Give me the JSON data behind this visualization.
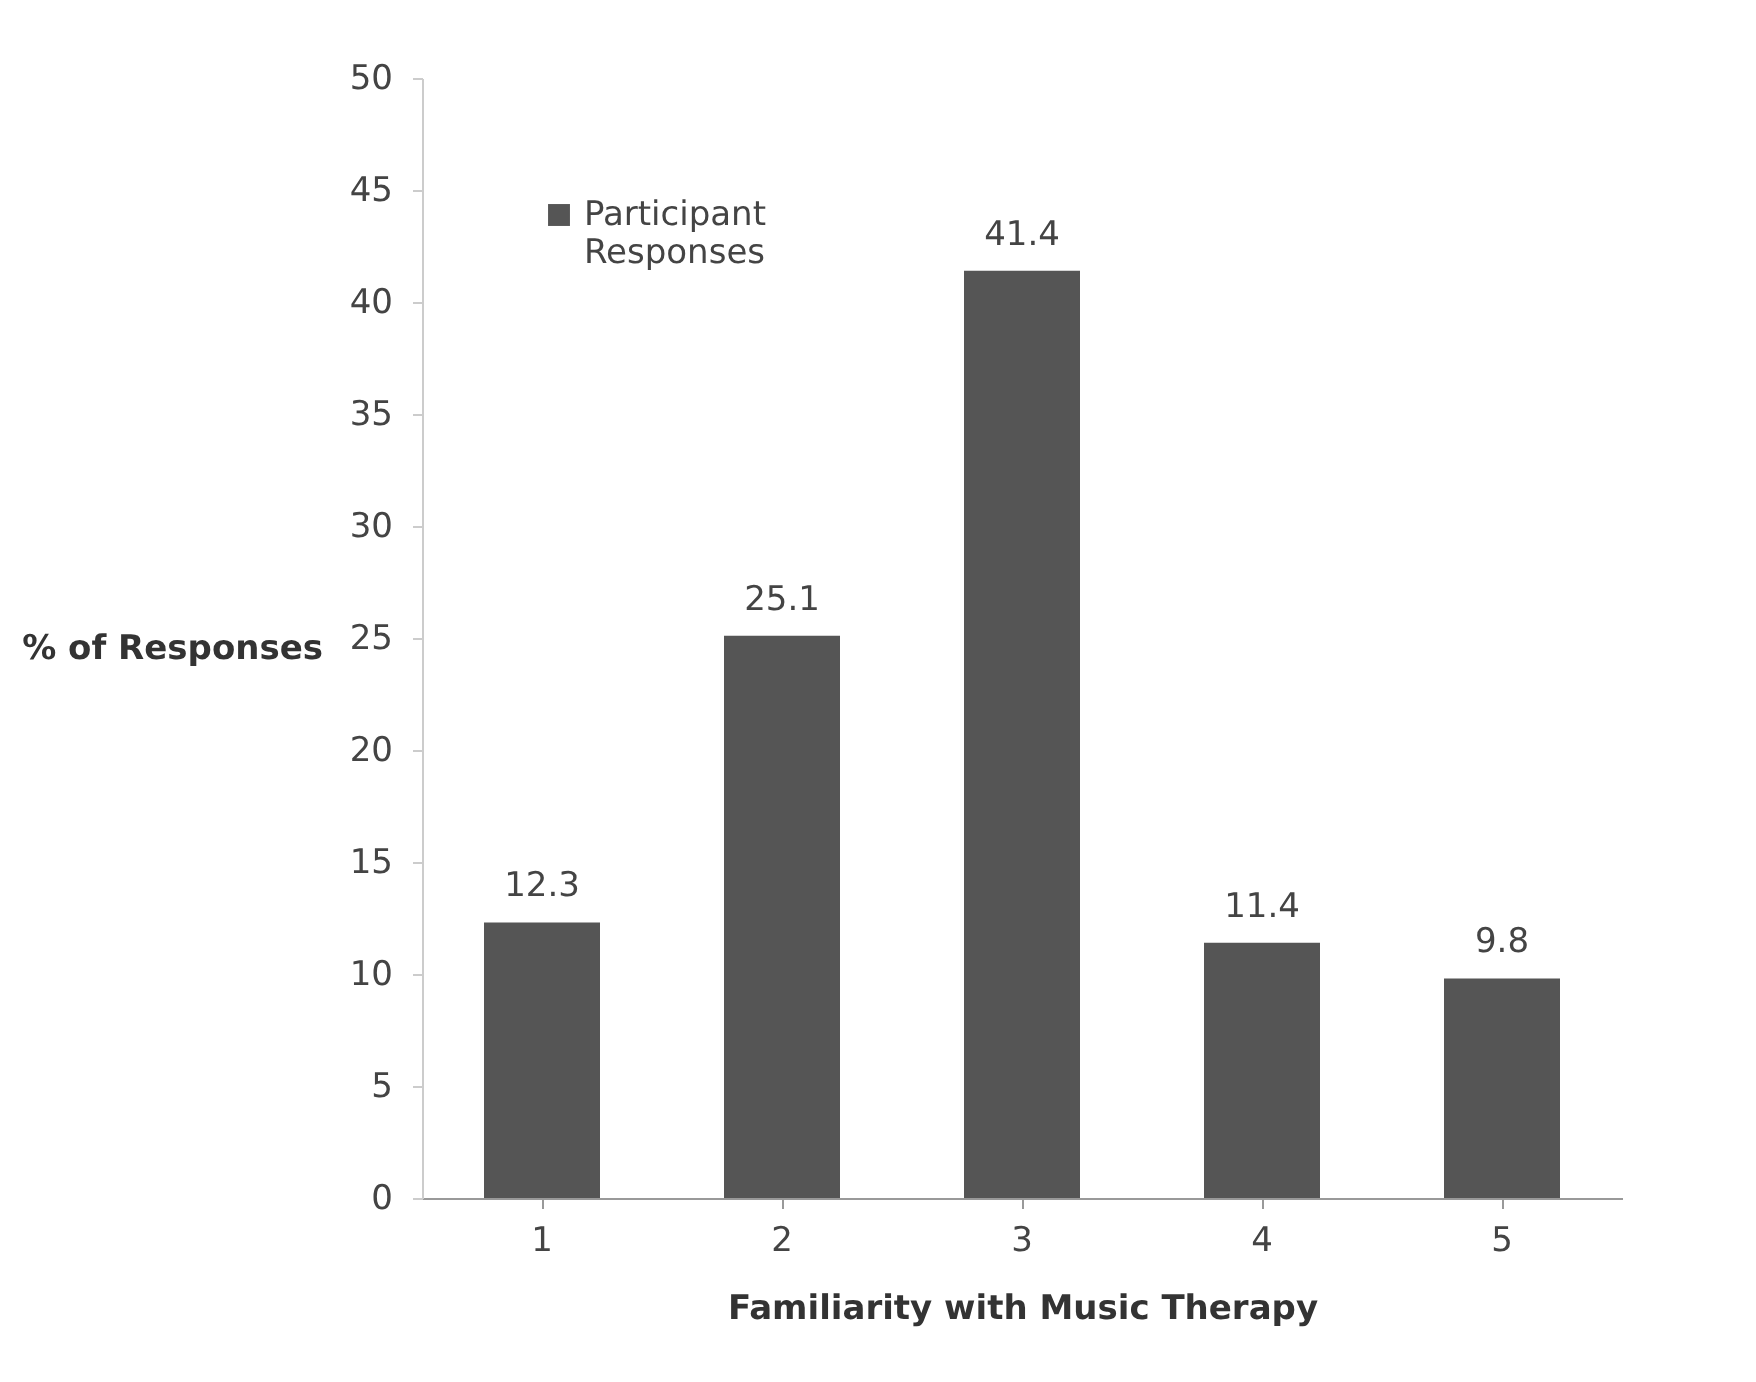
{
  "chart_data": {
    "type": "bar",
    "categories": [
      "1",
      "2",
      "3",
      "4",
      "5"
    ],
    "series": [
      {
        "name": "Participant Responses",
        "color": "#555555",
        "values": [
          12.3,
          25.1,
          41.4,
          11.4,
          9.8
        ]
      }
    ],
    "xlabel": "Familiarity with Music Therapy",
    "ylabel": "% of Responses",
    "ylim": [
      0,
      50
    ],
    "yticks": [
      0,
      5,
      10,
      15,
      20,
      25,
      30,
      35,
      40,
      45,
      50
    ],
    "data_labels": true,
    "grid": false,
    "legend": "top left"
  }
}
